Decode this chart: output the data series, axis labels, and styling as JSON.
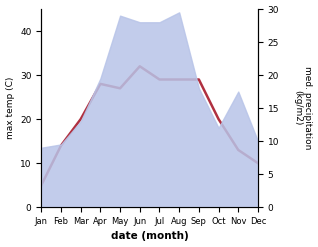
{
  "months": [
    "Jan",
    "Feb",
    "Mar",
    "Apr",
    "May",
    "Jun",
    "Jul",
    "Aug",
    "Sep",
    "Oct",
    "Nov",
    "Dec"
  ],
  "temp": [
    5,
    14,
    20,
    28,
    27,
    32,
    29,
    29,
    29,
    20,
    13,
    10
  ],
  "precip": [
    9,
    9.5,
    13,
    19.5,
    29,
    28,
    28,
    29.5,
    18,
    12,
    17.5,
    10
  ],
  "temp_color": "#b03040",
  "precip_fill_color": "#b8c4e8",
  "xlabel": "date (month)",
  "ylabel_left": "max temp (C)",
  "ylabel_right": "med. precipitation\n(kg/m2)",
  "ylim_left": [
    0,
    45
  ],
  "ylim_right": [
    0,
    30
  ],
  "yticks_left": [
    0,
    10,
    20,
    30,
    40
  ],
  "yticks_right": [
    0,
    5,
    10,
    15,
    20,
    25,
    30
  ],
  "background_color": "#ffffff",
  "line_width": 1.8
}
